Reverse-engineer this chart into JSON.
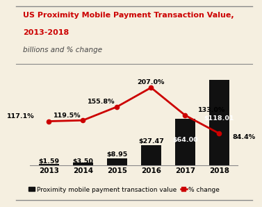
{
  "title_line1": "US Proximity Mobile Payment Transaction Value,",
  "title_line2": "2013-2018",
  "subtitle": "billions and % change",
  "years": [
    "2013",
    "2014",
    "2015",
    "2016",
    "2017",
    "2018"
  ],
  "bar_values": [
    1.59,
    3.5,
    8.95,
    27.47,
    64.0,
    118.01
  ],
  "bar_labels": [
    "$1.59",
    "$3.50",
    "$8.95",
    "$27.47",
    "$64.00",
    "$118.01"
  ],
  "pct_values": [
    117.1,
    119.5,
    155.8,
    207.0,
    133.0,
    84.4
  ],
  "pct_labels": [
    "117.1%",
    "119.5%",
    "155.8%",
    "207.0%",
    "133.0%",
    "84.4%"
  ],
  "bar_color": "#111111",
  "line_color": "#cc0000",
  "title_color": "#cc0000",
  "subtitle_color": "#444444",
  "bg_color": "#f5efe0",
  "title_fontsize": 8.0,
  "subtitle_fontsize": 7.5,
  "label_fontsize": 6.8,
  "pct_fontsize": 6.8,
  "legend_fontsize": 6.5,
  "bar_ylim": 135,
  "pct_ylim": 260,
  "pct_label_offsets": [
    [
      -0.42,
      6,
      "right"
    ],
    [
      -0.05,
      6,
      "right"
    ],
    [
      -0.05,
      6,
      "right"
    ],
    [
      0.0,
      7,
      "center"
    ],
    [
      0.38,
      6,
      "left"
    ],
    [
      0.38,
      -17,
      "left"
    ]
  ]
}
